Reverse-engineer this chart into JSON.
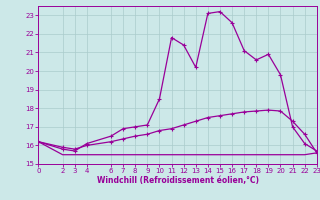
{
  "xlabel": "Windchill (Refroidissement éolien,°C)",
  "bg_color": "#cce8e8",
  "grid_color": "#aacccc",
  "line_color": "#990099",
  "xlim": [
    0,
    23
  ],
  "ylim": [
    15,
    23.5
  ],
  "xticks": [
    0,
    2,
    3,
    4,
    6,
    7,
    8,
    9,
    10,
    11,
    12,
    13,
    14,
    15,
    16,
    17,
    18,
    19,
    20,
    21,
    22,
    23
  ],
  "yticks": [
    15,
    16,
    17,
    18,
    19,
    20,
    21,
    22,
    23
  ],
  "curve1_x": [
    0,
    2,
    3,
    4,
    6,
    7,
    8,
    9,
    10,
    11,
    12,
    13,
    14,
    15,
    16,
    17,
    18,
    19,
    20,
    21,
    22,
    23
  ],
  "curve1_y": [
    16.2,
    15.8,
    15.7,
    16.1,
    16.5,
    16.9,
    17.0,
    17.1,
    18.5,
    21.8,
    21.4,
    20.2,
    23.1,
    23.2,
    22.6,
    21.1,
    20.6,
    20.9,
    19.8,
    17.0,
    16.1,
    15.7
  ],
  "curve2_x": [
    0,
    2,
    3,
    4,
    6,
    7,
    8,
    9,
    10,
    11,
    12,
    13,
    14,
    15,
    16,
    17,
    18,
    19,
    20,
    21,
    22,
    23
  ],
  "curve2_y": [
    16.2,
    15.9,
    15.8,
    16.0,
    16.2,
    16.35,
    16.5,
    16.6,
    16.8,
    16.9,
    17.1,
    17.3,
    17.5,
    17.6,
    17.7,
    17.8,
    17.85,
    17.9,
    17.85,
    17.3,
    16.6,
    15.6
  ],
  "curve3_x": [
    0,
    2,
    22,
    23
  ],
  "curve3_y": [
    16.2,
    15.5,
    15.5,
    15.6
  ]
}
